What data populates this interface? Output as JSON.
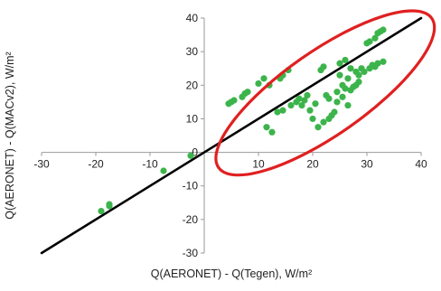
{
  "chart_data": {
    "type": "scatter",
    "xlabel": "Q(AERONET) - Q(Tegen), W/m²",
    "ylabel": "Q(AERONET) - Q(MACv2), W/m²",
    "xlim": [
      -30,
      40
    ],
    "ylim": [
      -30,
      40
    ],
    "xticks": [
      -30,
      -20,
      -10,
      0,
      10,
      20,
      30,
      40
    ],
    "yticks": [
      -30,
      -20,
      -10,
      0,
      10,
      20,
      30,
      40
    ],
    "xtick_labels": [
      "-30",
      "-20",
      "-10",
      "0",
      "10",
      "20",
      "30",
      "40"
    ],
    "ytick_labels": [
      "-30",
      "-20",
      "-10",
      "0",
      "10",
      "20",
      "30",
      "40"
    ],
    "grid": false,
    "point_color": "#3cb44b",
    "line_color": "#000000",
    "ellipse_color": "#e02020",
    "reference_line": {
      "x": [
        -30,
        40
      ],
      "y": [
        -30,
        40
      ]
    },
    "ellipse": {
      "center": [
        22.3,
        17.7
      ],
      "rx": 24,
      "ry": 7.7,
      "rotation_deg": 35
    },
    "points": [
      {
        "x": -19,
        "y": -17.5
      },
      {
        "x": -17.5,
        "y": -16
      },
      {
        "x": -17.5,
        "y": -15.5
      },
      {
        "x": -7.5,
        "y": -5.5
      },
      {
        "x": -2.5,
        "y": -1
      },
      {
        "x": 4.5,
        "y": 14.5
      },
      {
        "x": 5,
        "y": 15
      },
      {
        "x": 5.5,
        "y": 15.5
      },
      {
        "x": 7,
        "y": 16.5
      },
      {
        "x": 7.5,
        "y": 17.5
      },
      {
        "x": 8,
        "y": 18
      },
      {
        "x": 10,
        "y": 20.5
      },
      {
        "x": 11,
        "y": 22
      },
      {
        "x": 12,
        "y": 20
      },
      {
        "x": 11.5,
        "y": 7.5
      },
      {
        "x": 12.5,
        "y": 6
      },
      {
        "x": 13.5,
        "y": 12
      },
      {
        "x": 14,
        "y": 22
      },
      {
        "x": 14.5,
        "y": 23
      },
      {
        "x": 14.5,
        "y": 12.5
      },
      {
        "x": 15.5,
        "y": 24.5
      },
      {
        "x": 16,
        "y": 14
      },
      {
        "x": 17,
        "y": 15
      },
      {
        "x": 17.5,
        "y": 16
      },
      {
        "x": 18,
        "y": 14
      },
      {
        "x": 18.5,
        "y": 15.5
      },
      {
        "x": 19,
        "y": 17
      },
      {
        "x": 19.5,
        "y": 12.5
      },
      {
        "x": 20,
        "y": 10
      },
      {
        "x": 20.5,
        "y": 14.5
      },
      {
        "x": 21,
        "y": 7.5
      },
      {
        "x": 21.5,
        "y": 24.5
      },
      {
        "x": 22,
        "y": 25.5
      },
      {
        "x": 22,
        "y": 9
      },
      {
        "x": 22.5,
        "y": 17
      },
      {
        "x": 23,
        "y": 10
      },
      {
        "x": 23,
        "y": 16
      },
      {
        "x": 23.5,
        "y": 11
      },
      {
        "x": 24,
        "y": 12
      },
      {
        "x": 24.5,
        "y": 15
      },
      {
        "x": 24.5,
        "y": 18
      },
      {
        "x": 25,
        "y": 26.5
      },
      {
        "x": 25,
        "y": 23
      },
      {
        "x": 25.5,
        "y": 16.5
      },
      {
        "x": 25.5,
        "y": 20
      },
      {
        "x": 26,
        "y": 27.5
      },
      {
        "x": 26,
        "y": 19
      },
      {
        "x": 26.5,
        "y": 22
      },
      {
        "x": 26.5,
        "y": 14
      },
      {
        "x": 27,
        "y": 25
      },
      {
        "x": 27,
        "y": 18.5
      },
      {
        "x": 27.5,
        "y": 19.5
      },
      {
        "x": 28,
        "y": 24
      },
      {
        "x": 28,
        "y": 20
      },
      {
        "x": 28.5,
        "y": 21
      },
      {
        "x": 28.5,
        "y": 23
      },
      {
        "x": 29,
        "y": 25
      },
      {
        "x": 29.5,
        "y": 24
      },
      {
        "x": 30,
        "y": 32.5
      },
      {
        "x": 30.5,
        "y": 33
      },
      {
        "x": 30.5,
        "y": 25
      },
      {
        "x": 31,
        "y": 26
      },
      {
        "x": 31.5,
        "y": 34
      },
      {
        "x": 31.5,
        "y": 25.5
      },
      {
        "x": 32,
        "y": 35.5
      },
      {
        "x": 32,
        "y": 26.5
      },
      {
        "x": 32.5,
        "y": 36
      },
      {
        "x": 33,
        "y": 36.5
      },
      {
        "x": 33,
        "y": 27
      }
    ]
  }
}
